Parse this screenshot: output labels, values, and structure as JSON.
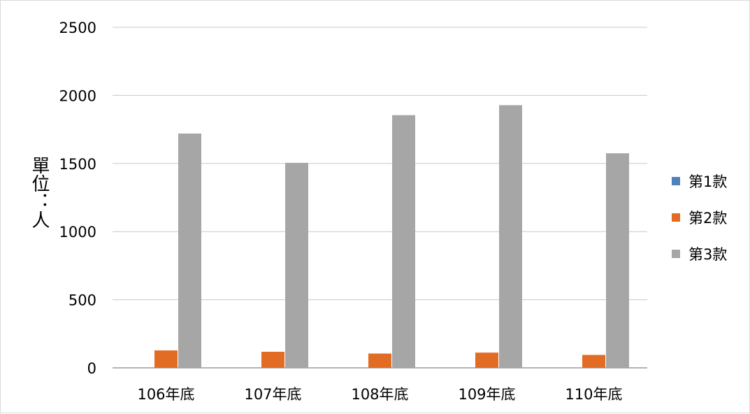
{
  "chart_data": {
    "type": "bar",
    "title": "",
    "xlabel": "",
    "ylabel": "單位：人",
    "categories": [
      "106年底",
      "107年底",
      "108年底",
      "109年底",
      "110年底"
    ],
    "series": [
      {
        "name": "第1款",
        "color": "#4f81bd",
        "values": [
          0,
          0,
          0,
          0,
          0
        ]
      },
      {
        "name": "第2款",
        "color": "#e36c25",
        "values": [
          128,
          118,
          105,
          112,
          95
        ]
      },
      {
        "name": "第3款",
        "color": "#a6a6a6",
        "values": [
          1720,
          1505,
          1855,
          1928,
          1575
        ]
      }
    ],
    "ylim": [
      0,
      2500
    ],
    "yticks": [
      0,
      500,
      1000,
      1500,
      2000,
      2500
    ],
    "grid": true,
    "legend_position": "right"
  }
}
